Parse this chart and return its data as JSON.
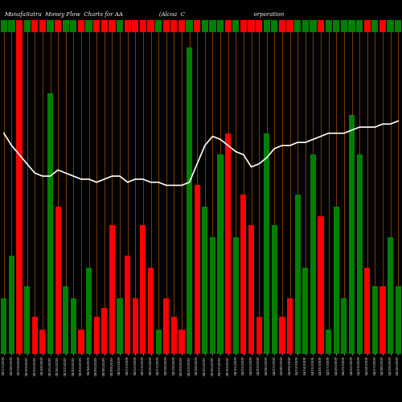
{
  "title": "MunafaSutra  Money Flow  Charts for AA                    (Alcoa  C                                      orporation",
  "background_color": "#000000",
  "bar_colors_pattern": [
    "green",
    "green",
    "red",
    "green",
    "red",
    "red",
    "green",
    "red",
    "green",
    "green",
    "red",
    "green",
    "red",
    "red",
    "red",
    "green",
    "red",
    "red",
    "red",
    "red",
    "green",
    "red",
    "red",
    "red",
    "green",
    "red",
    "green",
    "green",
    "green",
    "red",
    "green",
    "red",
    "red",
    "red",
    "green",
    "green",
    "red",
    "red",
    "green",
    "green",
    "green",
    "red",
    "green",
    "green",
    "green",
    "green",
    "green",
    "red",
    "green",
    "red",
    "green",
    "green"
  ],
  "bar_heights": [
    0.18,
    0.32,
    1.0,
    0.22,
    0.12,
    0.08,
    0.85,
    0.48,
    0.22,
    0.18,
    0.08,
    0.28,
    0.12,
    0.15,
    0.42,
    0.18,
    0.32,
    0.18,
    0.42,
    0.28,
    0.08,
    0.18,
    0.12,
    0.08,
    1.0,
    0.55,
    0.48,
    0.38,
    0.65,
    0.72,
    0.38,
    0.52,
    0.42,
    0.12,
    0.72,
    0.42,
    0.12,
    0.18,
    0.52,
    0.28,
    0.65,
    0.45,
    0.08,
    0.48,
    0.18,
    0.78,
    0.65,
    0.28,
    0.22,
    0.22,
    0.38,
    0.22
  ],
  "line_values": [
    0.72,
    0.68,
    0.65,
    0.62,
    0.59,
    0.58,
    0.58,
    0.6,
    0.59,
    0.58,
    0.57,
    0.57,
    0.56,
    0.57,
    0.58,
    0.58,
    0.56,
    0.57,
    0.57,
    0.56,
    0.56,
    0.55,
    0.55,
    0.55,
    0.56,
    0.62,
    0.68,
    0.71,
    0.7,
    0.68,
    0.66,
    0.65,
    0.61,
    0.62,
    0.64,
    0.67,
    0.68,
    0.68,
    0.69,
    0.69,
    0.7,
    0.71,
    0.72,
    0.72,
    0.72,
    0.73,
    0.74,
    0.74,
    0.74,
    0.75,
    0.75,
    0.76
  ],
  "n_bars": 52,
  "xlabels": [
    "02/17/2009",
    "02/18/2009",
    "02/19/2009",
    "02/20/2009",
    "02/23/2009",
    "02/24/2009",
    "02/25/2009",
    "02/26/2009",
    "02/27/2009",
    "03/02/2009",
    "03/03/2009",
    "03/04/2009",
    "03/05/2009",
    "03/06/2009",
    "03/09/2009",
    "03/10/2009",
    "03/11/2009",
    "03/12/2009",
    "03/13/2009",
    "03/16/2009",
    "03/17/2009",
    "03/18/2009",
    "03/19/2009",
    "03/20/2009",
    "03/23/2009",
    "03/24/2009",
    "03/25/2009",
    "03/26/2009",
    "03/27/2009",
    "03/30/2009",
    "03/31/2009",
    "04/01/2009",
    "04/02/2009",
    "04/03/2009",
    "04/06/2009",
    "04/07/2009",
    "04/08/2009",
    "04/09/2009",
    "04/13/2009",
    "04/14/2009",
    "04/15/2009",
    "04/16/2009",
    "04/17/2009",
    "04/20/2009",
    "04/21/2009",
    "04/22/2009",
    "04/23/2009",
    "04/24/2009",
    "04/27/2009",
    "04/28/2009",
    "04/29/2009",
    "04/30/2009"
  ],
  "line_color": "#ffffff",
  "orange_vline_color": "#8B4500",
  "special_full_red_bar": 2,
  "ylim": [
    0,
    1.05
  ],
  "line_scale": 1.0
}
